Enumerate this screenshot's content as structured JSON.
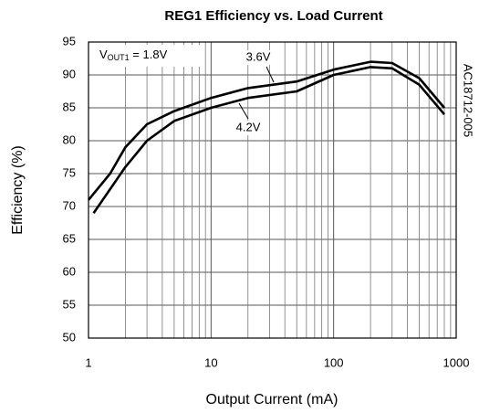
{
  "chart_data": {
    "type": "line",
    "title": "REG1 Efficiency vs. Load Current",
    "xlabel": "Output Current (mA)",
    "ylabel": "Efficiency (%)",
    "annotation": {
      "main": "V",
      "sub": "OUT1",
      "rest": " = 1.8V"
    },
    "figure_id": "AC18712-005",
    "xscale": "log",
    "xlim": [
      1,
      1000
    ],
    "xticks": [
      1,
      10,
      100,
      1000
    ],
    "ylim": [
      50,
      95
    ],
    "yticks": [
      50,
      55,
      60,
      65,
      70,
      75,
      80,
      85,
      90,
      95
    ],
    "grid": true,
    "series": [
      {
        "name": "3.6V",
        "color": "#000000",
        "x": [
          1,
          1.5,
          2,
          3,
          5,
          10,
          20,
          50,
          100,
          200,
          300,
          500,
          800
        ],
        "values": [
          71,
          75,
          79,
          82.5,
          84.5,
          86.5,
          88,
          89,
          90.8,
          92,
          91.8,
          89.5,
          85
        ]
      },
      {
        "name": "4.2V",
        "color": "#000000",
        "x": [
          1.1,
          2,
          3,
          5,
          10,
          20,
          50,
          100,
          200,
          300,
          500,
          800
        ],
        "values": [
          69,
          76,
          80,
          83,
          85,
          86.5,
          87.5,
          90,
          91.2,
          91,
          88.5,
          84
        ]
      }
    ]
  }
}
